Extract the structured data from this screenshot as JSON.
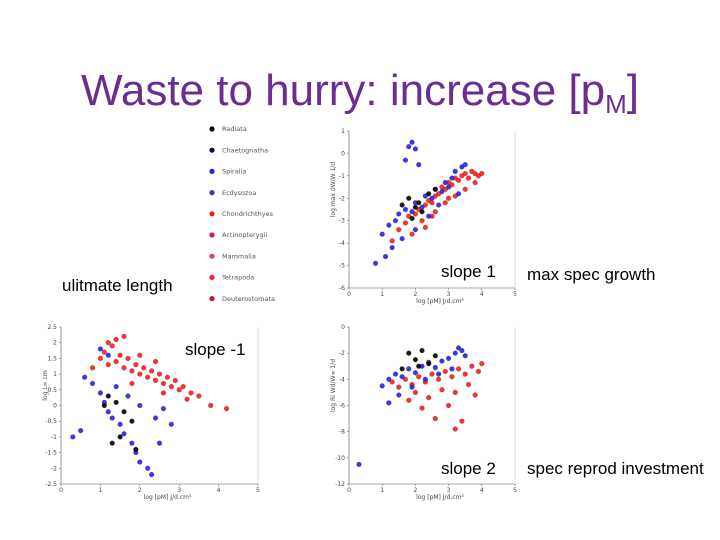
{
  "slide": {
    "title_main": "Waste to hurry: increase [p",
    "title_sub": "M",
    "title_end": "]"
  },
  "annotations": {
    "ultimate_length": "ulitmate length",
    "slope_1": "slope 1",
    "max_spec_growth": "max spec growth",
    "slope_minus_1": "slope -1",
    "slope_2": "slope 2",
    "spec_reprod_investment": "spec reprod investment"
  },
  "legend": {
    "entries": [
      {
        "name": "Radiata",
        "color": "#000000"
      },
      {
        "name": "Chaetognatha",
        "color": "#101040"
      },
      {
        "name": "Spiralia",
        "color": "#2222ee"
      },
      {
        "name": "Ecdysozoa",
        "color": "#3333cc"
      },
      {
        "name": "Chondrichthyes",
        "color": "#ff1a1a"
      },
      {
        "name": "Actinopterygii",
        "color": "#cc2244"
      },
      {
        "name": "Mammalia",
        "color": "#ee3366"
      },
      {
        "name": "Tetrapoda",
        "color": "#ff2222"
      },
      {
        "name": "Deuterostomata",
        "color": "#aa2233"
      }
    ]
  },
  "chart_data": [
    {
      "type": "scatter",
      "xlabel": "log [pM] J/d.cm³",
      "ylabel": "log max dW/W 1/d",
      "xlim": [
        0,
        5
      ],
      "ylim": [
        -6,
        1
      ],
      "xticks": [
        0,
        1,
        2,
        3,
        4,
        5
      ],
      "yticks": [
        1,
        0,
        -1,
        -2,
        -3,
        -4,
        -5,
        -6
      ],
      "trend": "slope 1",
      "series": [
        {
          "color": "#000000",
          "points": [
            [
              1.6,
              -2.3
            ],
            [
              1.8,
              -2.0
            ],
            [
              2.1,
              -2.2
            ],
            [
              2.4,
              -1.8
            ],
            [
              2.2,
              -2.6
            ],
            [
              1.9,
              -2.9
            ],
            [
              2.6,
              -1.6
            ],
            [
              2.0,
              -2.4
            ]
          ]
        },
        {
          "color": "#2222ee",
          "points": [
            [
              1.0,
              -3.6
            ],
            [
              1.2,
              -3.2
            ],
            [
              1.4,
              -3.0
            ],
            [
              1.5,
              -2.7
            ],
            [
              1.7,
              -2.5
            ],
            [
              1.9,
              -2.6
            ],
            [
              2.0,
              -2.2
            ],
            [
              2.2,
              -2.4
            ],
            [
              2.3,
              -1.9
            ],
            [
              2.5,
              -2.0
            ],
            [
              2.6,
              -1.6
            ],
            [
              2.8,
              -1.7
            ],
            [
              2.9,
              -1.3
            ],
            [
              3.0,
              -1.5
            ],
            [
              3.1,
              -1.1
            ],
            [
              3.2,
              -0.8
            ],
            [
              3.4,
              -0.6
            ],
            [
              3.5,
              -0.5
            ],
            [
              1.8,
              0.3
            ],
            [
              1.9,
              0.5
            ],
            [
              2.0,
              0.2
            ],
            [
              1.7,
              -0.3
            ],
            [
              2.1,
              -0.5
            ],
            [
              1.3,
              -4.2
            ],
            [
              1.6,
              -3.8
            ],
            [
              2.4,
              -2.8
            ],
            [
              2.7,
              -2.3
            ],
            [
              3.3,
              -1.8
            ],
            [
              1.1,
              -4.6
            ],
            [
              0.8,
              -4.9
            ],
            [
              2.0,
              -3.4
            ]
          ]
        },
        {
          "color": "#ff1a1a",
          "points": [
            [
              1.5,
              -3.4
            ],
            [
              1.7,
              -3.1
            ],
            [
              1.8,
              -2.8
            ],
            [
              2.0,
              -2.7
            ],
            [
              2.1,
              -2.5
            ],
            [
              2.3,
              -2.3
            ],
            [
              2.4,
              -2.1
            ],
            [
              2.5,
              -2.2
            ],
            [
              2.6,
              -1.9
            ],
            [
              2.7,
              -1.8
            ],
            [
              2.8,
              -1.5
            ],
            [
              2.9,
              -1.6
            ],
            [
              3.0,
              -1.3
            ],
            [
              3.1,
              -1.4
            ],
            [
              3.2,
              -1.1
            ],
            [
              3.3,
              -1.2
            ],
            [
              3.4,
              -1.0
            ],
            [
              3.5,
              -0.9
            ],
            [
              3.6,
              -1.1
            ],
            [
              3.7,
              -0.8
            ],
            [
              3.8,
              -0.9
            ],
            [
              3.9,
              -1.0
            ],
            [
              4.0,
              -0.9
            ],
            [
              2.2,
              -3.0
            ],
            [
              2.5,
              -2.8
            ],
            [
              2.9,
              -2.2
            ],
            [
              3.2,
              -1.9
            ],
            [
              3.5,
              -1.6
            ],
            [
              1.9,
              -3.6
            ],
            [
              1.3,
              -3.9
            ],
            [
              2.6,
              -2.6
            ],
            [
              3.0,
              -2.0
            ],
            [
              3.8,
              -1.3
            ],
            [
              2.3,
              -3.3
            ]
          ]
        }
      ]
    },
    {
      "type": "scatter",
      "xlabel": "log [pM] J/d.cm³",
      "ylabel": "log L∞ cm",
      "xlim": [
        0,
        5
      ],
      "ylim": [
        -2.5,
        2.5
      ],
      "xticks": [
        0,
        1,
        2,
        3,
        4,
        5
      ],
      "yticks": [
        2.5,
        2,
        1.5,
        1,
        0.5,
        0,
        -0.5,
        -1,
        -1.5,
        -2,
        -2.5
      ],
      "trend": "slope -1",
      "series": [
        {
          "color": "#000000",
          "points": [
            [
              1.2,
              0.3
            ],
            [
              1.4,
              0.1
            ],
            [
              1.6,
              -0.2
            ],
            [
              1.8,
              -0.5
            ],
            [
              1.3,
              -1.2
            ],
            [
              1.5,
              -1.0
            ],
            [
              1.9,
              -1.4
            ],
            [
              1.1,
              0.0
            ]
          ]
        },
        {
          "color": "#2222ee",
          "points": [
            [
              0.6,
              0.9
            ],
            [
              0.8,
              0.7
            ],
            [
              1.0,
              0.4
            ],
            [
              1.1,
              0.1
            ],
            [
              1.2,
              -0.2
            ],
            [
              1.3,
              -0.4
            ],
            [
              1.5,
              -0.6
            ],
            [
              1.6,
              -0.9
            ],
            [
              1.8,
              -1.2
            ],
            [
              1.9,
              -1.5
            ],
            [
              2.0,
              -1.8
            ],
            [
              2.2,
              -2.0
            ],
            [
              2.3,
              -2.2
            ],
            [
              1.4,
              0.6
            ],
            [
              1.7,
              0.3
            ],
            [
              2.0,
              0.0
            ],
            [
              2.4,
              -0.4
            ],
            [
              2.6,
              -0.1
            ],
            [
              2.8,
              -0.6
            ],
            [
              1.2,
              1.6
            ],
            [
              1.0,
              1.8
            ],
            [
              0.3,
              -1.0
            ],
            [
              0.5,
              -0.8
            ],
            [
              2.5,
              -1.2
            ]
          ]
        },
        {
          "color": "#ff1a1a",
          "points": [
            [
              1.0,
              1.5
            ],
            [
              1.1,
              1.7
            ],
            [
              1.2,
              1.3
            ],
            [
              1.3,
              1.9
            ],
            [
              1.4,
              1.4
            ],
            [
              1.5,
              1.6
            ],
            [
              1.6,
              1.2
            ],
            [
              1.7,
              1.5
            ],
            [
              1.8,
              1.1
            ],
            [
              1.9,
              1.3
            ],
            [
              2.0,
              1.0
            ],
            [
              2.1,
              1.2
            ],
            [
              2.2,
              0.9
            ],
            [
              2.3,
              1.1
            ],
            [
              2.4,
              0.8
            ],
            [
              2.5,
              1.0
            ],
            [
              2.6,
              0.7
            ],
            [
              2.7,
              0.9
            ],
            [
              2.8,
              0.6
            ],
            [
              2.9,
              0.8
            ],
            [
              3.0,
              0.5
            ],
            [
              3.1,
              0.6
            ],
            [
              3.3,
              0.4
            ],
            [
              3.5,
              0.3
            ],
            [
              1.4,
              2.1
            ],
            [
              1.6,
              2.2
            ],
            [
              1.2,
              2.0
            ],
            [
              2.0,
              1.6
            ],
            [
              2.4,
              1.4
            ],
            [
              3.8,
              0.0
            ],
            [
              3.2,
              0.2
            ],
            [
              0.8,
              1.2
            ],
            [
              1.8,
              0.7
            ],
            [
              2.6,
              0.4
            ],
            [
              4.2,
              -0.1
            ]
          ]
        }
      ]
    },
    {
      "type": "scatter",
      "xlabel": "log [pM] J/d.cm³",
      "ylabel": "log Ri Wd/W∞ 1/d",
      "xlim": [
        0,
        5
      ],
      "ylim": [
        -12,
        0
      ],
      "xticks": [
        0,
        1,
        2,
        3,
        4,
        5
      ],
      "yticks": [
        0,
        -2,
        -4,
        -6,
        -8,
        -10,
        -12
      ],
      "trend": "slope 2",
      "series": [
        {
          "color": "#000000",
          "points": [
            [
              1.8,
              -2.0
            ],
            [
              2.0,
              -2.5
            ],
            [
              2.2,
              -1.8
            ],
            [
              2.4,
              -2.8
            ],
            [
              1.6,
              -3.2
            ],
            [
              2.6,
              -2.2
            ],
            [
              2.1,
              -3.0
            ]
          ]
        },
        {
          "color": "#2222ee",
          "points": [
            [
              1.0,
              -4.5
            ],
            [
              1.2,
              -4.0
            ],
            [
              1.4,
              -3.6
            ],
            [
              1.6,
              -3.8
            ],
            [
              1.8,
              -3.2
            ],
            [
              2.0,
              -3.5
            ],
            [
              2.2,
              -3.0
            ],
            [
              2.4,
              -2.7
            ],
            [
              2.6,
              -3.1
            ],
            [
              2.8,
              -2.6
            ],
            [
              3.0,
              -2.4
            ],
            [
              3.2,
              -2.0
            ],
            [
              3.3,
              -1.6
            ],
            [
              3.4,
              -1.8
            ],
            [
              3.5,
              -2.2
            ],
            [
              1.5,
              -5.2
            ],
            [
              1.9,
              -4.6
            ],
            [
              2.3,
              -4.0
            ],
            [
              2.7,
              -3.6
            ],
            [
              3.1,
              -3.2
            ],
            [
              0.3,
              -10.5
            ],
            [
              1.2,
              -5.8
            ]
          ]
        },
        {
          "color": "#ff1a1a",
          "points": [
            [
              1.3,
              -4.2
            ],
            [
              1.5,
              -4.6
            ],
            [
              1.7,
              -4.0
            ],
            [
              1.9,
              -4.4
            ],
            [
              2.1,
              -3.8
            ],
            [
              2.3,
              -4.2
            ],
            [
              2.5,
              -3.6
            ],
            [
              2.7,
              -4.0
            ],
            [
              2.9,
              -3.4
            ],
            [
              3.1,
              -3.8
            ],
            [
              3.3,
              -3.2
            ],
            [
              3.5,
              -3.6
            ],
            [
              3.7,
              -3.0
            ],
            [
              3.9,
              -3.4
            ],
            [
              4.0,
              -2.8
            ],
            [
              2.0,
              -5.0
            ],
            [
              2.4,
              -5.4
            ],
            [
              2.8,
              -4.8
            ],
            [
              3.2,
              -5.0
            ],
            [
              3.6,
              -4.4
            ],
            [
              2.2,
              -6.2
            ],
            [
              3.0,
              -6.0
            ],
            [
              3.4,
              -7.2
            ],
            [
              2.6,
              -7.0
            ],
            [
              1.8,
              -5.6
            ],
            [
              3.8,
              -5.2
            ],
            [
              3.2,
              -7.8
            ]
          ]
        }
      ]
    }
  ]
}
